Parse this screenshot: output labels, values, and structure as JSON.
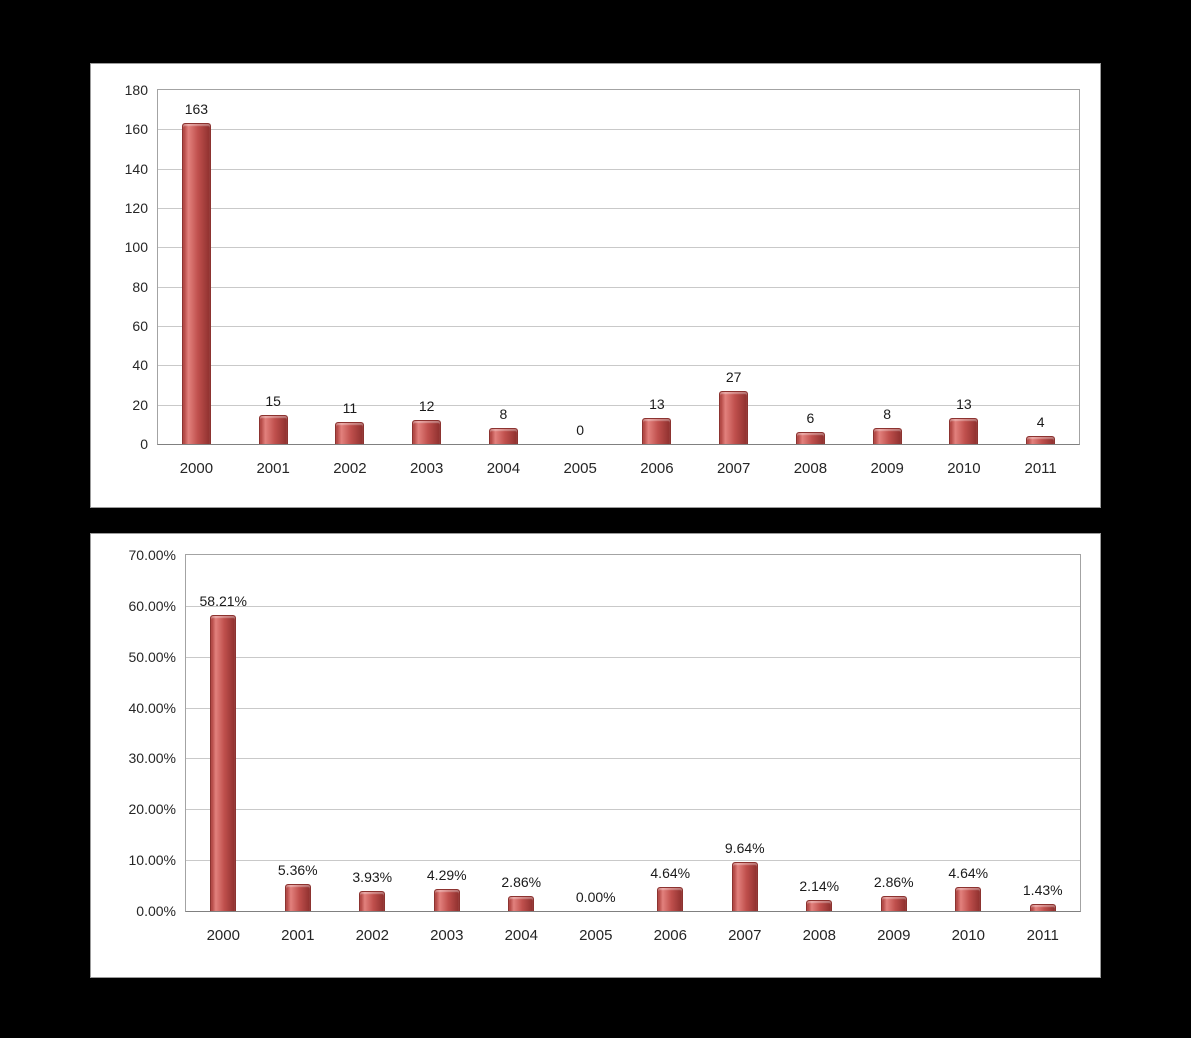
{
  "page": {
    "background_color": "#000000",
    "panel_color": "#ffffff"
  },
  "colors": {
    "bar_fill": "#c0504d",
    "bar_border": "#8c3330",
    "gridline": "#c9c9c9",
    "axis": "#808080",
    "text": "#262626"
  },
  "chart_data": [
    {
      "type": "bar",
      "title": "",
      "xlabel": "",
      "ylabel": "",
      "categories": [
        "2000",
        "2001",
        "2002",
        "2003",
        "2004",
        "2005",
        "2006",
        "2007",
        "2008",
        "2009",
        "2010",
        "2011"
      ],
      "values": [
        163,
        15,
        11,
        12,
        8,
        0,
        13,
        27,
        6,
        8,
        13,
        4
      ],
      "value_labels": [
        "163",
        "15",
        "11",
        "12",
        "8",
        "0",
        "13",
        "27",
        "6",
        "8",
        "13",
        "4"
      ],
      "ylim": [
        0,
        180
      ],
      "ytick_step": 20,
      "ytick_labels": [
        "0",
        "20",
        "40",
        "60",
        "80",
        "100",
        "120",
        "140",
        "160",
        "180"
      ],
      "grid": true,
      "legend": "none"
    },
    {
      "type": "bar",
      "title": "",
      "xlabel": "",
      "ylabel": "",
      "categories": [
        "2000",
        "2001",
        "2002",
        "2003",
        "2004",
        "2005",
        "2006",
        "2007",
        "2008",
        "2009",
        "2010",
        "2011"
      ],
      "values": [
        58.21,
        5.36,
        3.93,
        4.29,
        2.86,
        0.0,
        4.64,
        9.64,
        2.14,
        2.86,
        4.64,
        1.43
      ],
      "value_labels": [
        "58.21%",
        "5.36%",
        "3.93%",
        "4.29%",
        "2.86%",
        "0.00%",
        "4.64%",
        "9.64%",
        "2.14%",
        "2.86%",
        "4.64%",
        "1.43%"
      ],
      "ylim": [
        0,
        70
      ],
      "ytick_step": 10,
      "ytick_labels": [
        "0.00%",
        "10.00%",
        "20.00%",
        "30.00%",
        "40.00%",
        "50.00%",
        "60.00%",
        "70.00%"
      ],
      "grid": true,
      "legend": "none"
    }
  ]
}
